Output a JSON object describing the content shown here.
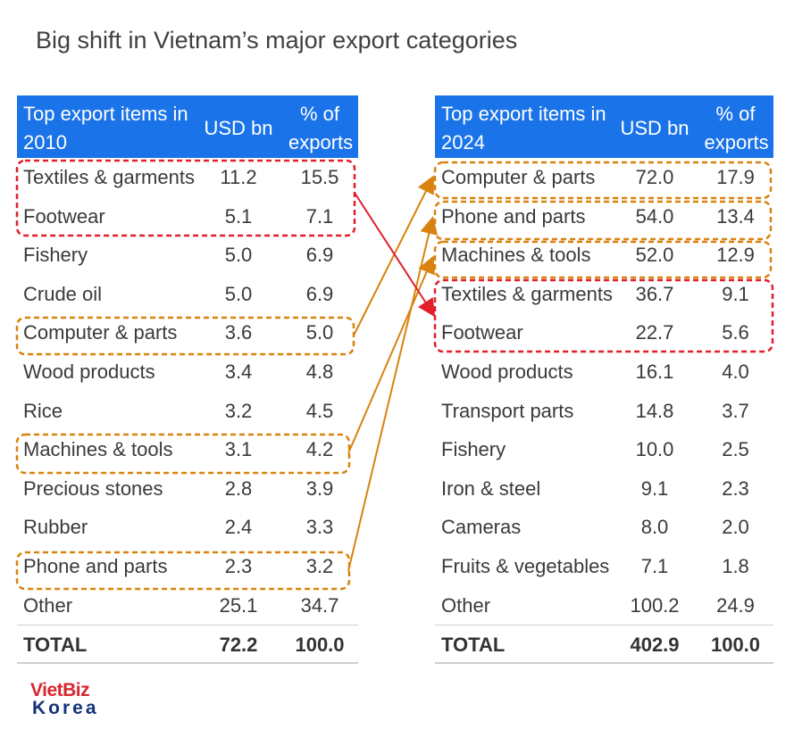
{
  "title": "Big shift in Vietnam’s major export categories",
  "colors": {
    "header_bg": "#1a73e8",
    "highlight_red": "#e21e2b",
    "highlight_orange": "#d9820f"
  },
  "logo": {
    "line1": "VietBiz",
    "line2": "Korea"
  },
  "chart_data": [
    {
      "type": "table",
      "columns": [
        "Top export items in 2010",
        "USD bn",
        "% of exports"
      ],
      "rows": [
        [
          "Textiles & garments",
          "11.2",
          "15.5"
        ],
        [
          "Footwear",
          "5.1",
          "7.1"
        ],
        [
          "Fishery",
          "5.0",
          "6.9"
        ],
        [
          "Crude oil",
          "5.0",
          "6.9"
        ],
        [
          "Computer & parts",
          "3.6",
          "5.0"
        ],
        [
          "Wood products",
          "3.4",
          "4.8"
        ],
        [
          "Rice",
          "3.2",
          "4.5"
        ],
        [
          "Machines & tools",
          "3.1",
          "4.2"
        ],
        [
          "Precious stones",
          "2.8",
          "3.9"
        ],
        [
          "Rubber",
          "2.4",
          "3.3"
        ],
        [
          "Phone and parts",
          "2.3",
          "3.2"
        ],
        [
          "Other",
          "25.1",
          "34.7"
        ]
      ],
      "total": [
        "TOTAL",
        "72.2",
        "100.0"
      ]
    },
    {
      "type": "table",
      "columns": [
        "Top export items in 2024",
        "USD bn",
        "% of exports"
      ],
      "rows": [
        [
          "Computer & parts",
          "72.0",
          "17.9"
        ],
        [
          "Phone and parts",
          "54.0",
          "13.4"
        ],
        [
          "Machines & tools",
          "52.0",
          "12.9"
        ],
        [
          "Textiles & garments",
          "36.7",
          "9.1"
        ],
        [
          "Footwear",
          "22.7",
          "5.6"
        ],
        [
          "Wood products",
          "16.1",
          "4.0"
        ],
        [
          "Transport parts",
          "14.8",
          "3.7"
        ],
        [
          "Fishery",
          "10.0",
          "2.5"
        ],
        [
          "Iron & steel",
          "9.1",
          "2.3"
        ],
        [
          "Cameras",
          "8.0",
          "2.0"
        ],
        [
          "Fruits & vegetables",
          "7.1",
          "1.8"
        ],
        [
          "Other",
          "100.2",
          "24.9"
        ]
      ],
      "total": [
        "TOTAL",
        "402.9",
        "100.0"
      ]
    }
  ]
}
